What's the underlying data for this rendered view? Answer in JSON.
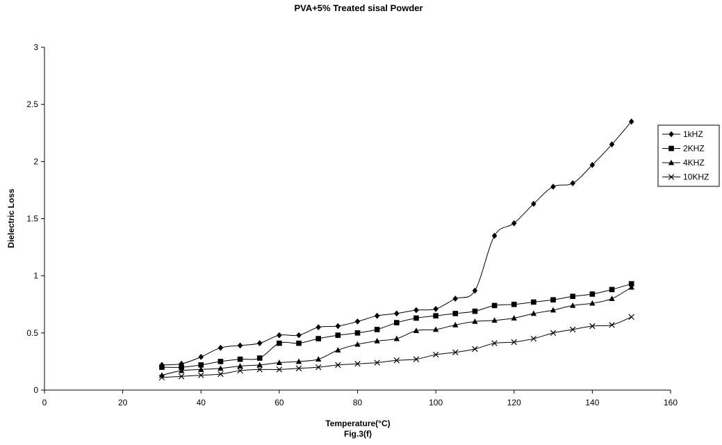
{
  "chart_data": {
    "type": "line",
    "title": "PVA+5% Treated sisal Powder",
    "xlabel": "Temperature(°C)",
    "caption": "Fig.3(f)",
    "ylabel": "Dielectric Loss",
    "xlim": [
      0,
      160
    ],
    "ylim": [
      0,
      3
    ],
    "xticks": [
      "0",
      "20",
      "40",
      "60",
      "80",
      "100",
      "120",
      "140",
      "160"
    ],
    "yticks": [
      "0",
      "0.5",
      "1",
      "1.5",
      "2",
      "2.5",
      "3"
    ],
    "grid": false,
    "legend_position": "right",
    "x": [
      30,
      35,
      40,
      45,
      50,
      55,
      60,
      65,
      70,
      75,
      80,
      85,
      90,
      95,
      100,
      105,
      110,
      115,
      120,
      125,
      130,
      135,
      140,
      145,
      150
    ],
    "series": [
      {
        "name": "1kHZ",
        "marker": "diamond",
        "values": [
          0.22,
          0.23,
          0.29,
          0.37,
          0.39,
          0.41,
          0.48,
          0.48,
          0.55,
          0.56,
          0.6,
          0.65,
          0.67,
          0.7,
          0.71,
          0.8,
          0.87,
          1.35,
          1.46,
          1.63,
          1.78,
          1.81,
          1.97,
          2.15,
          2.35
        ]
      },
      {
        "name": "2KHZ",
        "marker": "square",
        "values": [
          0.2,
          0.2,
          0.22,
          0.25,
          0.27,
          0.28,
          0.41,
          0.41,
          0.45,
          0.48,
          0.5,
          0.53,
          0.59,
          0.63,
          0.65,
          0.67,
          0.69,
          0.74,
          0.75,
          0.77,
          0.79,
          0.82,
          0.84,
          0.88,
          0.93
        ]
      },
      {
        "name": "4KHZ",
        "marker": "triangle",
        "values": [
          0.13,
          0.17,
          0.18,
          0.19,
          0.21,
          0.22,
          0.24,
          0.25,
          0.27,
          0.35,
          0.4,
          0.43,
          0.45,
          0.52,
          0.53,
          0.57,
          0.6,
          0.61,
          0.63,
          0.67,
          0.7,
          0.74,
          0.76,
          0.8,
          0.9
        ]
      },
      {
        "name": "10KHZ",
        "marker": "x",
        "values": [
          0.11,
          0.12,
          0.13,
          0.14,
          0.17,
          0.18,
          0.18,
          0.19,
          0.2,
          0.22,
          0.23,
          0.24,
          0.26,
          0.27,
          0.31,
          0.33,
          0.36,
          0.41,
          0.42,
          0.45,
          0.5,
          0.53,
          0.56,
          0.57,
          0.64
        ]
      }
    ]
  }
}
